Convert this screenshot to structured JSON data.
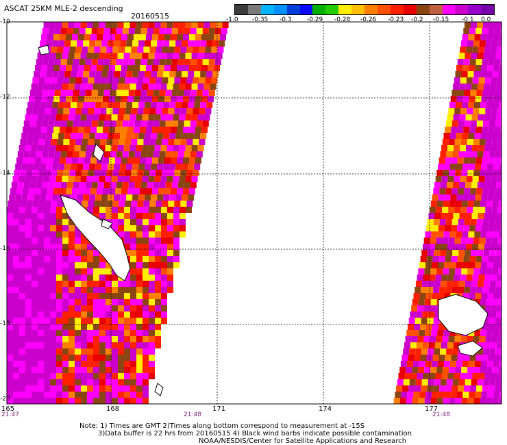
{
  "header": {
    "title": "ASCAT 25KM MLE-2 descending",
    "date": "20160515"
  },
  "colorbar": {
    "colors": [
      "#3c3c3c",
      "#7a7a7a",
      "#00b4ff",
      "#0090ff",
      "#0040d8",
      "#0a0aff",
      "#00b000",
      "#22cc00",
      "#ffee00",
      "#ffc000",
      "#ff8000",
      "#ff5000",
      "#ff2000",
      "#e80000",
      "#8b4513",
      "#c06040",
      "#ff00ff",
      "#cc00cc",
      "#9900cc",
      "#7700aa"
    ],
    "labels": [
      "-1.0",
      "-0.35",
      "-0.3",
      "-0.29",
      "-0.28",
      "-0.26",
      "-0.23",
      "-0.2",
      "-0.15",
      "-0.1",
      "0.0"
    ]
  },
  "axes": {
    "y_labels": [
      "-10",
      "-12",
      "-14",
      "-16",
      "-18",
      "-20"
    ],
    "x_labels": [
      "165",
      "168",
      "171",
      "174",
      "177"
    ]
  },
  "times": [
    "21:47",
    "21:48",
    "21:48"
  ],
  "notes": [
    "Note: 1) Times are GMT 2)Times along bottom correspond to measurement at -15S",
    "3)Data buffer is 22 hrs from 20160515 4) Black wind barbs indicate possible contamination",
    "NOAA/NESDIS/Center for Satellite Applications and Research"
  ]
}
